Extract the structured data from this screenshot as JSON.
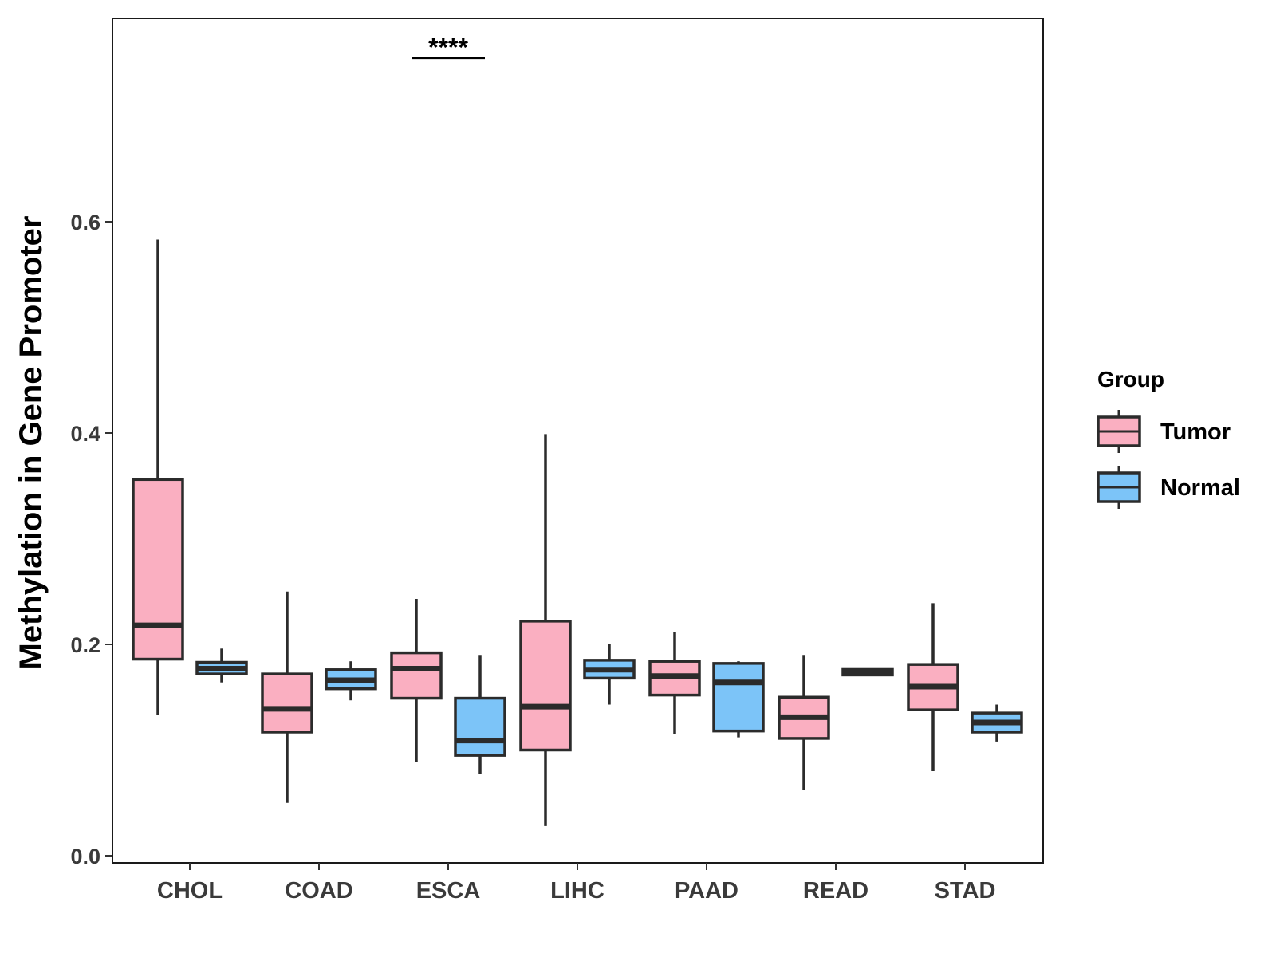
{
  "chart_data": {
    "type": "boxplot",
    "title": "",
    "xlabel": "",
    "ylabel": "Methylation in Gene Promoter",
    "ylim": [
      -0.02,
      0.78
    ],
    "yticks": [
      0.0,
      0.2,
      0.4,
      0.6
    ],
    "ytick_labels": [
      "0.0",
      "0.2",
      "0.4",
      "0.6"
    ],
    "grid": false,
    "legend_position": "right",
    "categories": [
      "CHOL",
      "COAD",
      "ESCA",
      "LIHC",
      "PAAD",
      "READ",
      "STAD"
    ],
    "series": [
      {
        "name": "Tumor",
        "color": "#FAAFC1",
        "boxes": [
          {
            "whisker_low": 0.133,
            "q1": 0.186,
            "median": 0.218,
            "q3": 0.356,
            "whisker_high": 0.583
          },
          {
            "whisker_low": 0.05,
            "q1": 0.117,
            "median": 0.139,
            "q3": 0.172,
            "whisker_high": 0.25
          },
          {
            "whisker_low": 0.089,
            "q1": 0.149,
            "median": 0.177,
            "q3": 0.192,
            "whisker_high": 0.243
          },
          {
            "whisker_low": 0.028,
            "q1": 0.1,
            "median": 0.141,
            "q3": 0.222,
            "whisker_high": 0.399
          },
          {
            "whisker_low": 0.115,
            "q1": 0.152,
            "median": 0.17,
            "q3": 0.184,
            "whisker_high": 0.212
          },
          {
            "whisker_low": 0.062,
            "q1": 0.111,
            "median": 0.131,
            "q3": 0.15,
            "whisker_high": 0.19
          },
          {
            "whisker_low": 0.08,
            "q1": 0.138,
            "median": 0.16,
            "q3": 0.181,
            "whisker_high": 0.239
          }
        ]
      },
      {
        "name": "Normal",
        "color": "#7CC4F8",
        "boxes": [
          {
            "whisker_low": 0.164,
            "q1": 0.172,
            "median": 0.177,
            "q3": 0.183,
            "whisker_high": 0.196
          },
          {
            "whisker_low": 0.147,
            "q1": 0.158,
            "median": 0.166,
            "q3": 0.176,
            "whisker_high": 0.184
          },
          {
            "whisker_low": 0.077,
            "q1": 0.095,
            "median": 0.109,
            "q3": 0.149,
            "whisker_high": 0.19
          },
          {
            "whisker_low": 0.143,
            "q1": 0.168,
            "median": 0.176,
            "q3": 0.185,
            "whisker_high": 0.2
          },
          {
            "whisker_low": 0.112,
            "q1": 0.118,
            "median": 0.164,
            "q3": 0.182,
            "whisker_high": 0.184
          },
          {
            "whisker_low": 0.17,
            "q1": 0.171,
            "median": 0.174,
            "q3": 0.177,
            "whisker_high": 0.178
          },
          {
            "whisker_low": 0.108,
            "q1": 0.117,
            "median": 0.126,
            "q3": 0.135,
            "whisker_high": 0.143
          }
        ]
      }
    ],
    "annotations": [
      {
        "category": "ESCA",
        "text": "****",
        "y": 0.755
      }
    ],
    "legend": {
      "title": "Group",
      "entries": [
        "Tumor",
        "Normal"
      ]
    }
  }
}
